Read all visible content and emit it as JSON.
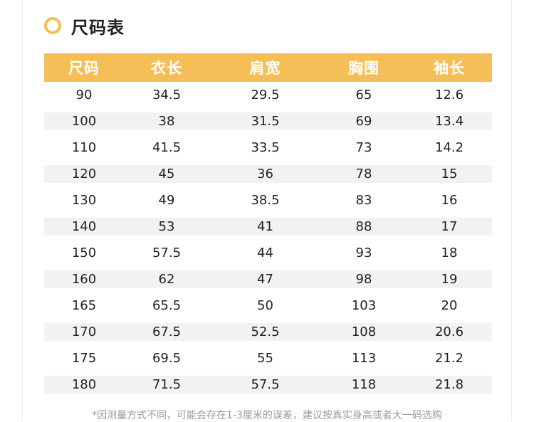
{
  "title": "尺码表",
  "colors": {
    "accent": "#f6be56",
    "stripe": "#f2f2f2"
  },
  "table": {
    "headers": [
      "尺码",
      "衣长",
      "肩宽",
      "胸围",
      "袖长"
    ],
    "rows": [
      [
        "90",
        "34.5",
        "29.5",
        "65",
        "12.6"
      ],
      [
        "100",
        "38",
        "31.5",
        "69",
        "13.4"
      ],
      [
        "110",
        "41.5",
        "33.5",
        "73",
        "14.2"
      ],
      [
        "120",
        "45",
        "36",
        "78",
        "15"
      ],
      [
        "130",
        "49",
        "38.5",
        "83",
        "16"
      ],
      [
        "140",
        "53",
        "41",
        "88",
        "17"
      ],
      [
        "150",
        "57.5",
        "44",
        "93",
        "18"
      ],
      [
        "160",
        "62",
        "47",
        "98",
        "19"
      ],
      [
        "165",
        "65.5",
        "50",
        "103",
        "20"
      ],
      [
        "170",
        "67.5",
        "52.5",
        "108",
        "20.6"
      ],
      [
        "175",
        "69.5",
        "55",
        "113",
        "21.2"
      ],
      [
        "180",
        "71.5",
        "57.5",
        "118",
        "21.8"
      ]
    ]
  },
  "note": "*因测量方式不同，可能会存在1-3厘米的误差，建议按真实身高或者大一码选购"
}
